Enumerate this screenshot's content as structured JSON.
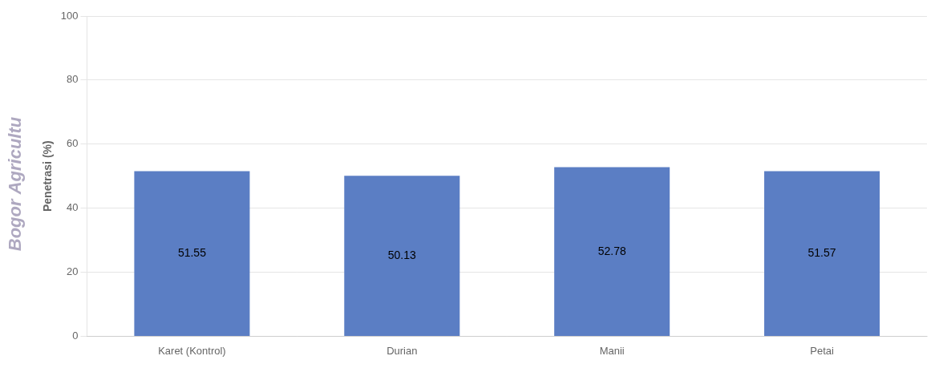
{
  "chart_data": {
    "type": "bar",
    "categories": [
      "Karet (Kontrol)",
      "Durian",
      "Manii",
      "Petai"
    ],
    "values": [
      51.55,
      50.13,
      52.78,
      51.57
    ],
    "color": "#5b7ec4",
    "ylabel": "Penetrasi (%)",
    "ylim": [
      0,
      100
    ],
    "yticks": [
      0,
      20,
      40,
      60,
      80,
      100
    ],
    "grid": true,
    "data_labels": true,
    "annotations": [
      "Bogor Agricultu"
    ]
  }
}
